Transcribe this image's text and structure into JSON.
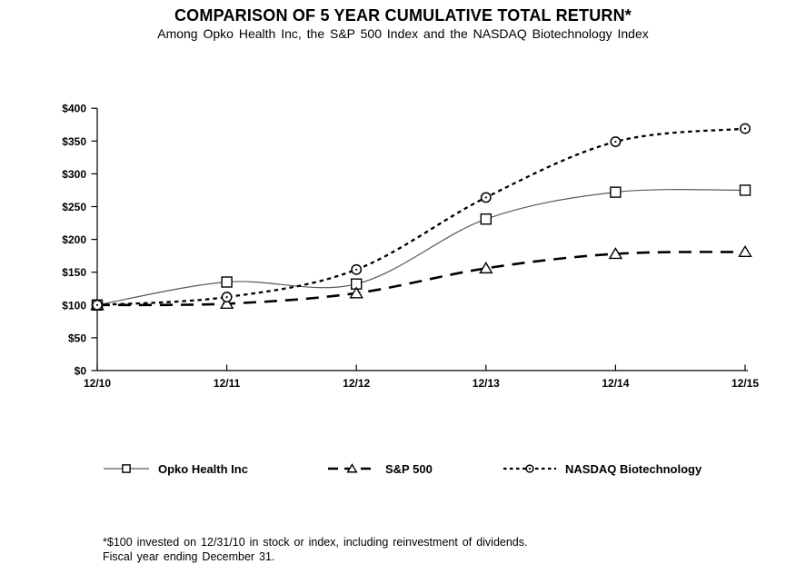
{
  "title": "COMPARISON OF 5 YEAR CUMULATIVE TOTAL RETURN*",
  "subtitle": "Among Opko Health Inc, the S&P 500 Index and the NASDAQ Biotechnology Index",
  "footnote": {
    "line1": "*$100 invested on 12/31/10 in stock or index, including reinvestment of dividends.",
    "line2": "Fiscal year ending December 31."
  },
  "colors": {
    "ink": "#000000",
    "opko_line_gray": "#595959",
    "background": "#ffffff"
  },
  "chart_data": {
    "type": "line",
    "categories": [
      "12/10",
      "12/11",
      "12/12",
      "12/13",
      "12/14",
      "12/15"
    ],
    "series": [
      {
        "name": "Opko Health Inc",
        "marker": "square",
        "line_style": "solid",
        "values": [
          100,
          135,
          132,
          231,
          272,
          275
        ]
      },
      {
        "name": "S&P 500",
        "marker": "triangle",
        "line_style": "long-dash",
        "values": [
          100,
          102,
          118,
          156,
          178,
          181
        ]
      },
      {
        "name": "NASDAQ Biotechnology",
        "marker": "circle",
        "line_style": "short-dash",
        "values": [
          100,
          112,
          154,
          264,
          349,
          369
        ]
      }
    ],
    "title": "COMPARISON OF 5 YEAR CUMULATIVE TOTAL RETURN*",
    "xlabel": "",
    "ylabel": "",
    "y_ticks": [
      "$0",
      "$50",
      "$100",
      "$150",
      "$200",
      "$250",
      "$300",
      "$350",
      "$400"
    ],
    "ylim": [
      0,
      400
    ],
    "grid": false,
    "legend_position": "bottom"
  }
}
